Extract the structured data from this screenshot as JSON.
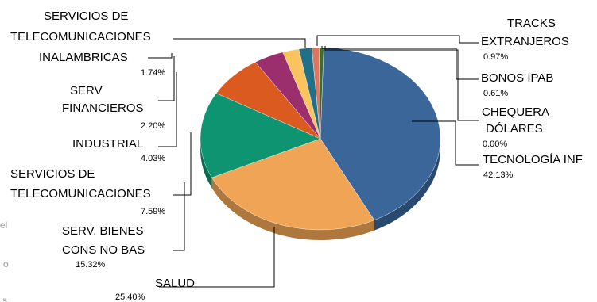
{
  "chart_data": {
    "type": "pie",
    "title": "",
    "labels": [
      "TECNOLOGÍA INF",
      "SALUD",
      "SERV. BIENES CONS NO BAS",
      "SERVICIOS DE TELECOMUNICACIONES",
      "INDUSTRIAL",
      "SERV FINANCIEROS",
      "INALAMBRICAS",
      "SERVICIOS DE TELECOMUNICACIONES",
      "TRACKS EXTRANJEROS",
      "BONOS IPAB",
      "CHEQUERA DÓLARES"
    ],
    "values": [
      42.13,
      25.4,
      15.32,
      7.59,
      4.03,
      2.2,
      1.74,
      0.0,
      0.97,
      0.61,
      0.0
    ],
    "value_labels": [
      "42.13%",
      "25.40%",
      "15.32%",
      "7.59%",
      "4.03%",
      "2.20%",
      "1.74%",
      "",
      "0.97%",
      "0.61%",
      "0.00%"
    ],
    "colors": [
      "#3A6699",
      "#F0A556",
      "#0E9470",
      "#DA5A1F",
      "#9B2F6E",
      "#F9C45F",
      "#217088",
      "#217088",
      "#DF7760",
      "#3E6E2F",
      "#8E8E8E"
    ],
    "legend": "none"
  },
  "page_fragments": {
    "a": "el",
    "b": "o",
    "c": "s"
  }
}
